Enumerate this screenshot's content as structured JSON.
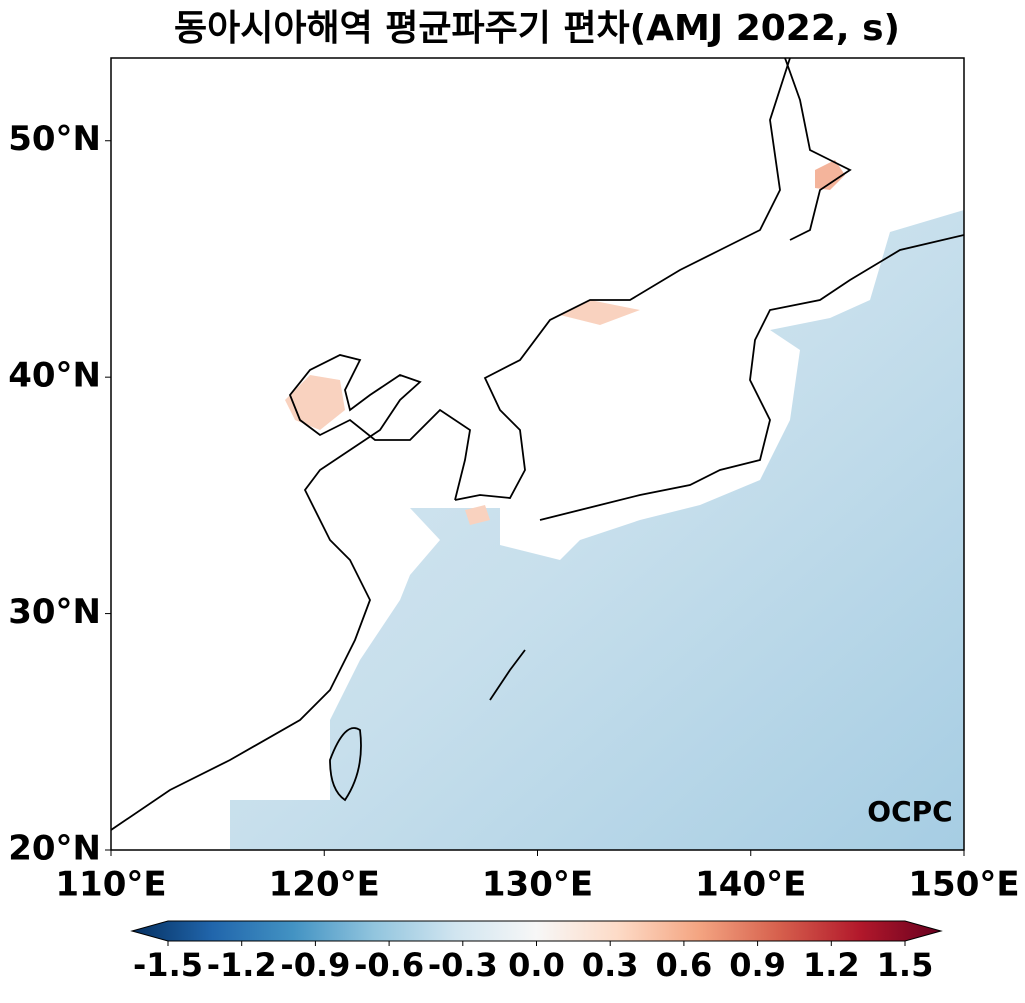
{
  "chart_data": {
    "type": "map",
    "title": "동아시아해역 평균파주기 편차(AMJ 2022, s)",
    "xlim": [
      110,
      150
    ],
    "ylim": [
      20,
      53.5
    ],
    "xticks": [
      {
        "value": 110,
        "label": "110°E"
      },
      {
        "value": 120,
        "label": "120°E"
      },
      {
        "value": 130,
        "label": "130°E"
      },
      {
        "value": 140,
        "label": "140°E"
      },
      {
        "value": 150,
        "label": "150°E"
      }
    ],
    "yticks": [
      {
        "value": 20,
        "label": "20°N"
      },
      {
        "value": 30,
        "label": "30°N"
      },
      {
        "value": 40,
        "label": "40°N"
      },
      {
        "value": 50,
        "label": "50°N"
      }
    ],
    "colorbar": {
      "lim": [
        -1.5,
        1.5
      ],
      "ticks": [
        -1.5,
        -1.2,
        -0.9,
        -0.6,
        -0.3,
        {
          "value": 0,
          "label": "0.0"
        },
        0.3,
        0.6,
        0.9,
        1.2,
        1.5
      ],
      "colors": [
        "#053061",
        "#2166ac",
        "#4393c3",
        "#92c5de",
        "#d1e5f0",
        "#f7f7f7",
        "#fddbc7",
        "#f4a582",
        "#d6604d",
        "#b2182b",
        "#67001f"
      ]
    },
    "logo": "OCPC"
  }
}
